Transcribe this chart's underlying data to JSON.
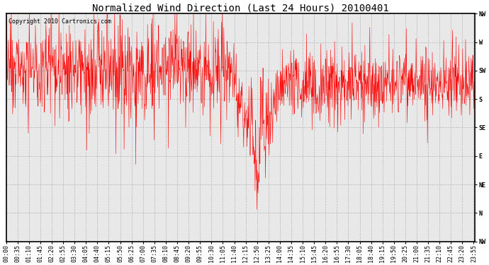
{
  "title": "Normalized Wind Direction (Last 24 Hours) 20100401",
  "copyright_text": "Copyright 2010 Cartronics.com",
  "line_color": "#FF0000",
  "background_color": "#FFFFFF",
  "plot_bg_color": "#E8E8E8",
  "grid_color": "#AAAAAA",
  "ytick_labels": [
    "NW",
    "W",
    "SW",
    "S",
    "SE",
    "E",
    "NE",
    "N",
    "NW"
  ],
  "ytick_values": [
    8,
    7,
    6,
    5,
    4,
    3,
    2,
    1,
    0
  ],
  "ylim": [
    0,
    8
  ],
  "num_points": 1440,
  "seed": 42,
  "title_fontsize": 10,
  "tick_fontsize": 6,
  "copyright_fontsize": 6,
  "linewidth": 0.4
}
